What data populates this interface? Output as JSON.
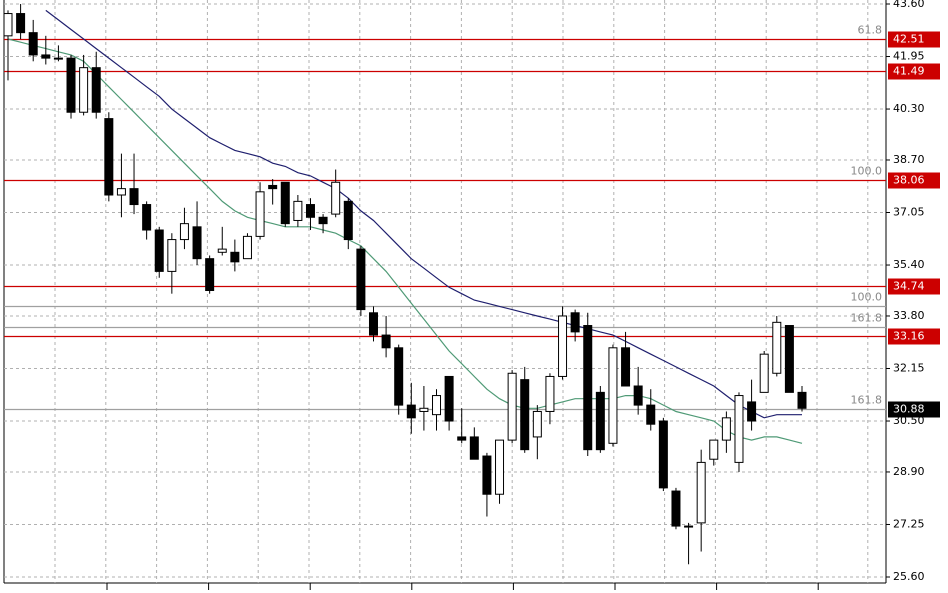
{
  "chart_data": {
    "type": "candlestick",
    "ylim": [
      25.6,
      43.6
    ],
    "yticks": [
      {
        "value": 43.6,
        "label": "43.60"
      },
      {
        "value": 41.95,
        "label": "41.95"
      },
      {
        "value": 40.3,
        "label": "40.30"
      },
      {
        "value": 38.7,
        "label": "38.70"
      },
      {
        "value": 37.05,
        "label": "37.05"
      },
      {
        "value": 35.4,
        "label": "35.40"
      },
      {
        "value": 33.8,
        "label": "33.80"
      },
      {
        "value": 32.15,
        "label": "32.15"
      },
      {
        "value": 30.5,
        "label": "30.50"
      },
      {
        "value": 28.9,
        "label": "28.90"
      },
      {
        "value": 27.25,
        "label": "27.25"
      },
      {
        "value": 25.6,
        "label": "25.60"
      }
    ],
    "grid": true,
    "up_color": "#ffffff",
    "down_color": "#000000",
    "open": [
      42.6,
      43.3,
      42.7,
      42.0,
      41.9,
      41.9,
      40.2,
      41.6,
      40.0,
      37.6,
      37.8,
      37.3,
      36.5,
      35.2,
      36.2,
      36.6,
      35.6,
      35.8,
      35.8,
      35.6,
      36.3,
      37.9,
      38.0,
      36.8,
      37.3,
      36.9,
      37.0,
      37.4,
      35.9,
      33.9,
      33.2,
      32.8,
      31.0,
      30.8,
      30.7,
      31.9,
      30.0,
      30.0,
      29.4,
      28.2,
      29.9,
      31.8,
      30.0,
      30.8,
      31.9,
      33.9,
      33.5,
      31.4,
      29.8,
      32.8,
      31.6,
      31.0,
      30.5,
      28.3,
      27.2,
      27.3,
      29.3,
      29.9,
      29.2,
      31.1,
      31.4,
      32.0,
      33.5,
      31.4
    ],
    "high": [
      43.4,
      43.6,
      43.1,
      42.6,
      42.3,
      42.0,
      42.0,
      42.1,
      40.2,
      38.9,
      38.9,
      37.4,
      36.6,
      36.4,
      37.2,
      37.4,
      35.7,
      36.6,
      36.2,
      36.4,
      38.0,
      38.1,
      38.0,
      37.6,
      37.5,
      37.0,
      38.4,
      37.5,
      36.0,
      34.1,
      33.8,
      32.9,
      31.7,
      31.6,
      31.5,
      31.9,
      30.9,
      30.3,
      29.5,
      29.9,
      32.1,
      32.2,
      31.0,
      32.0,
      34.1,
      34.0,
      33.9,
      31.6,
      32.9,
      33.3,
      32.2,
      31.5,
      30.6,
      28.4,
      27.3,
      29.6,
      29.9,
      30.8,
      31.4,
      31.8,
      32.7,
      33.8,
      33.5,
      31.6
    ],
    "low": [
      41.2,
      42.5,
      41.8,
      41.7,
      41.8,
      40.0,
      40.1,
      40.0,
      37.4,
      36.9,
      37.0,
      36.2,
      35.0,
      34.5,
      35.9,
      35.4,
      34.5,
      35.7,
      35.2,
      35.6,
      36.2,
      37.3,
      36.6,
      36.6,
      36.5,
      36.4,
      36.9,
      35.9,
      33.8,
      33.0,
      32.5,
      30.7,
      30.1,
      30.2,
      30.2,
      30.2,
      29.8,
      29.3,
      27.5,
      27.9,
      29.8,
      29.5,
      29.3,
      30.4,
      31.8,
      33.0,
      29.4,
      29.5,
      29.7,
      31.6,
      30.7,
      30.2,
      28.3,
      27.1,
      26.0,
      26.4,
      29.1,
      29.5,
      28.9,
      30.2,
      31.4,
      31.9,
      31.4,
      30.8
    ],
    "close": [
      43.3,
      42.7,
      42.0,
      41.9,
      41.9,
      40.2,
      41.6,
      40.2,
      37.6,
      37.8,
      37.3,
      36.5,
      35.2,
      36.2,
      36.7,
      35.6,
      34.6,
      35.9,
      35.5,
      36.3,
      37.7,
      37.8,
      36.7,
      37.4,
      36.9,
      36.7,
      38.0,
      36.2,
      34.0,
      33.2,
      32.8,
      31.0,
      30.6,
      30.9,
      31.3,
      30.5,
      29.9,
      29.3,
      28.2,
      29.9,
      32.0,
      29.6,
      30.8,
      31.9,
      33.8,
      33.3,
      29.6,
      29.6,
      32.8,
      31.6,
      31.0,
      30.4,
      28.4,
      27.2,
      27.2,
      29.2,
      29.9,
      30.6,
      31.3,
      30.5,
      32.6,
      33.6,
      31.4,
      30.9
    ],
    "moving_averages": [
      {
        "color": "#1f1f6e",
        "values": [
          null,
          null,
          null,
          43.4,
          43.1,
          42.8,
          42.5,
          42.2,
          41.9,
          41.6,
          41.3,
          41.0,
          40.7,
          40.3,
          40.0,
          39.7,
          39.4,
          39.2,
          39.0,
          38.9,
          38.8,
          38.6,
          38.5,
          38.3,
          38.2,
          38.0,
          37.8,
          37.5,
          37.1,
          36.8,
          36.4,
          36.0,
          35.6,
          35.3,
          35.0,
          34.7,
          34.5,
          34.3,
          34.2,
          34.1,
          34.0,
          33.9,
          33.8,
          33.7,
          33.6,
          33.5,
          33.4,
          33.3,
          33.2,
          33.0,
          32.8,
          32.6,
          32.4,
          32.2,
          32.0,
          31.8,
          31.6,
          31.3,
          31.0,
          30.8,
          30.6,
          30.7,
          30.7,
          30.7
        ]
      },
      {
        "color": "#4f9a76",
        "values": [
          42.5,
          42.4,
          42.3,
          42.2,
          42.1,
          42.0,
          41.8,
          41.4,
          41.0,
          40.6,
          40.2,
          39.8,
          39.4,
          39.0,
          38.6,
          38.2,
          37.8,
          37.4,
          37.1,
          36.9,
          36.8,
          36.7,
          36.6,
          36.6,
          36.6,
          36.5,
          36.4,
          36.2,
          36.0,
          35.6,
          35.2,
          34.7,
          34.2,
          33.7,
          33.2,
          32.7,
          32.3,
          31.9,
          31.5,
          31.2,
          31.0,
          30.9,
          30.9,
          31.0,
          31.1,
          31.2,
          31.2,
          31.2,
          31.2,
          31.3,
          31.3,
          31.2,
          31.0,
          30.8,
          30.7,
          30.6,
          30.5,
          30.2,
          30.0,
          29.9,
          30.0,
          30.0,
          29.9,
          29.8
        ]
      }
    ],
    "levels": [
      {
        "value": 42.51,
        "color": "#cc0000",
        "price_label": true,
        "annotation": "61.8"
      },
      {
        "value": 41.49,
        "color": "#cc0000",
        "price_label": true
      },
      {
        "value": 38.06,
        "color": "#cc0000",
        "price_label": true,
        "annotation": "100.0"
      },
      {
        "value": 34.74,
        "color": "#cc0000",
        "price_label": true
      },
      {
        "value": 34.11,
        "color": "#a0a0a0",
        "price_label": false,
        "annotation": "100.0"
      },
      {
        "value": 33.45,
        "color": "#a0a0a0",
        "price_label": false,
        "annotation": "161.8"
      },
      {
        "value": 33.16,
        "color": "#cc0000",
        "price_label": true
      },
      {
        "value": 30.88,
        "color": "#000000",
        "price_label": true,
        "annotation": "161.8",
        "line_color": "#a0a0a0"
      }
    ]
  }
}
